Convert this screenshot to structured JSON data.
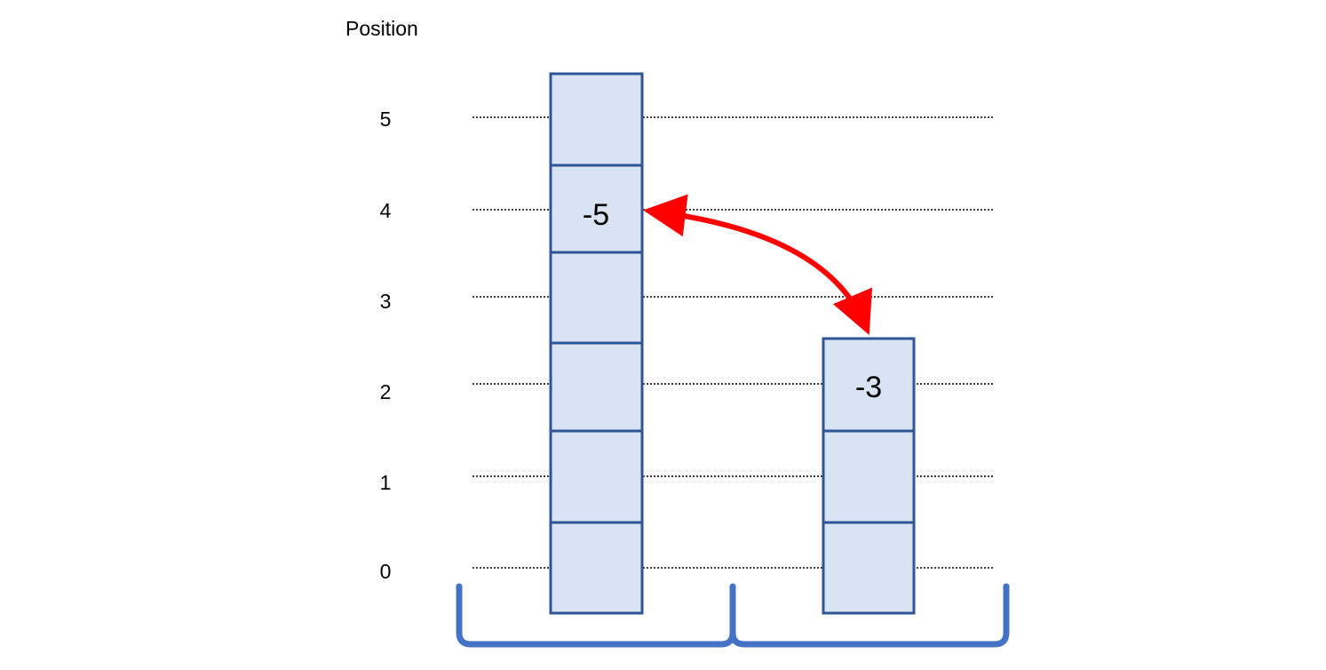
{
  "axis_title": "Position",
  "position_ticks": [
    "5",
    "4",
    "3",
    "2",
    "1",
    "0"
  ],
  "stacks": [
    {
      "cells": [
        "",
        "",
        "",
        "",
        "-5",
        ""
      ]
    },
    {
      "cells": [
        "",
        "",
        "-3"
      ]
    }
  ],
  "colors": {
    "cell_fill": "#dae3f3",
    "cell_stroke": "#2f5597",
    "bracket": "#4472c4",
    "arrow": "#ff0000",
    "gridline": "#000000"
  }
}
